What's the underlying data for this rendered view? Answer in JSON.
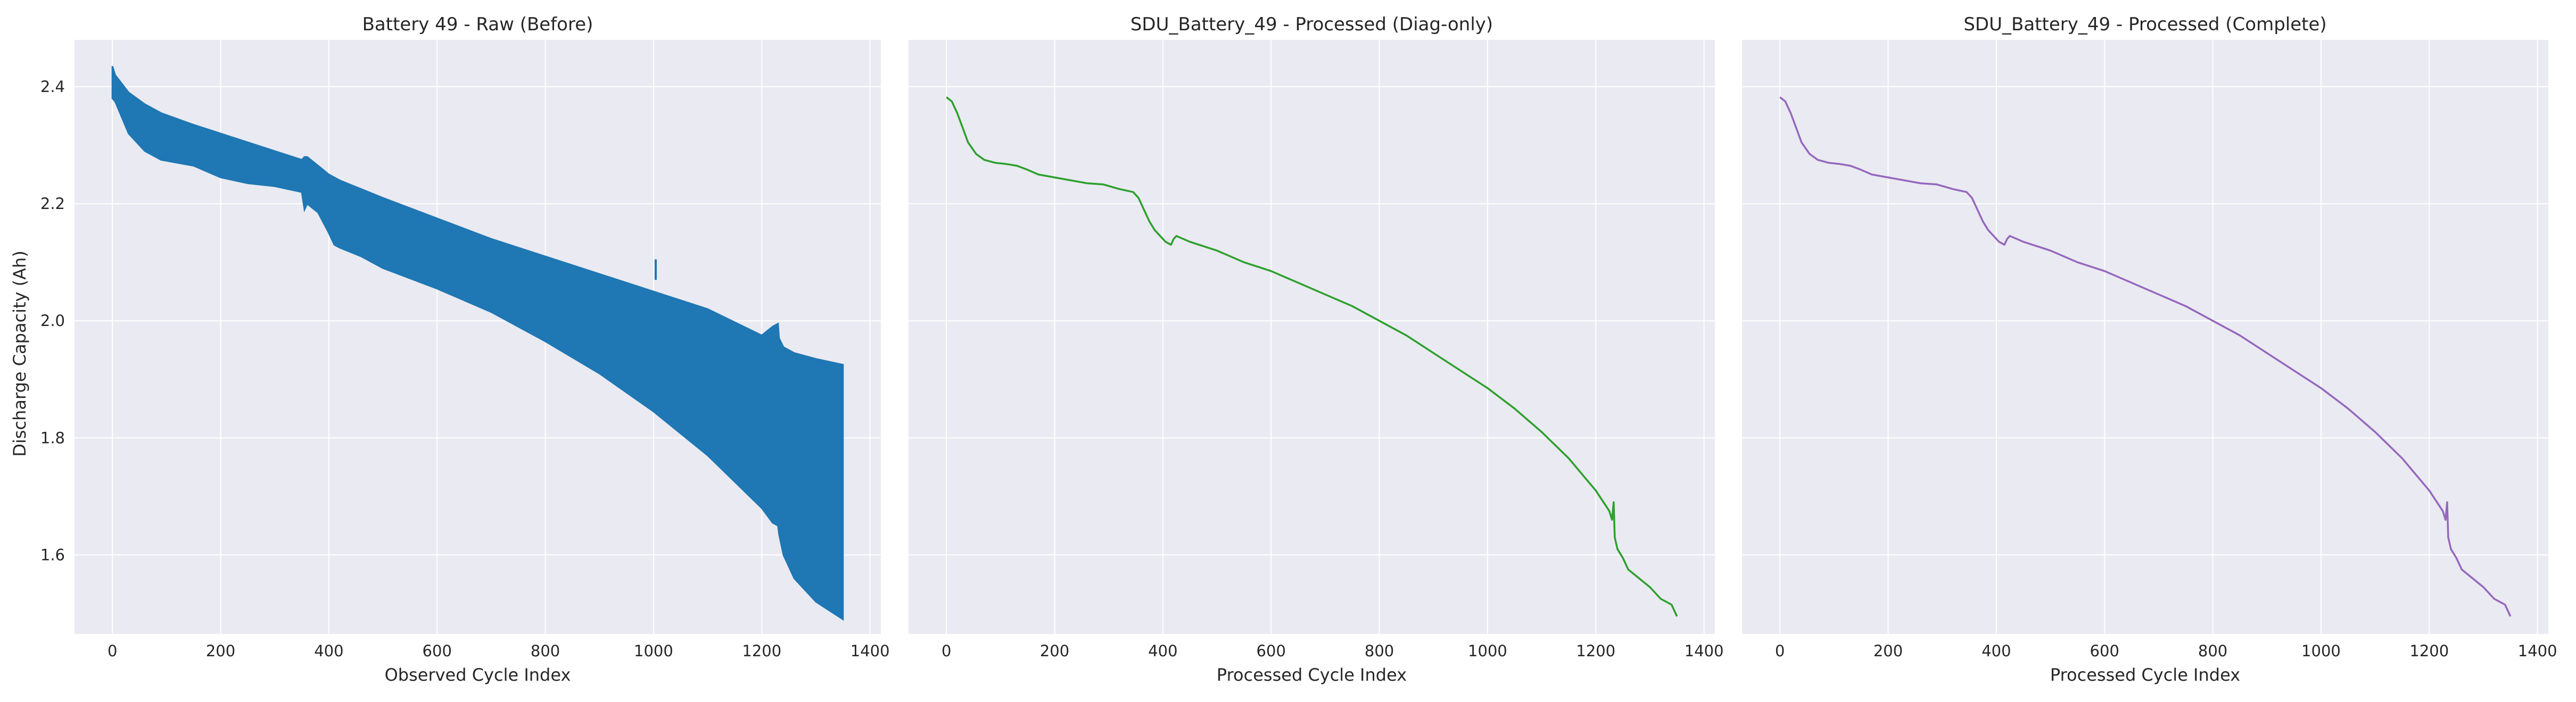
{
  "figure": {
    "ylabel": "Discharge Capacity (Ah)"
  },
  "chart_data": [
    {
      "type": "line",
      "title": "Battery 49 - Raw (Before)",
      "xlabel": "Observed Cycle Index",
      "ylabel": "Discharge Capacity (Ah)",
      "xlim": [
        -70,
        1420
      ],
      "ylim": [
        1.465,
        2.48
      ],
      "xticks": [
        0,
        200,
        400,
        600,
        800,
        1000,
        1200,
        1400
      ],
      "yticks": [
        1.6,
        1.8,
        2.0,
        2.2,
        2.4
      ],
      "grid": true,
      "color": "#1f77b4",
      "series": [
        {
          "style": "band",
          "x": [
            0,
            5,
            30,
            60,
            90,
            150,
            200,
            250,
            300,
            350,
            355,
            360,
            380,
            400,
            410,
            420,
            460,
            500,
            600,
            700,
            800,
            900,
            1000,
            1100,
            1200,
            1220,
            1230,
            1232,
            1240,
            1260,
            1300,
            1350
          ],
          "upper": [
            2.435,
            2.42,
            2.39,
            2.37,
            2.355,
            2.335,
            2.32,
            2.305,
            2.29,
            2.275,
            2.28,
            2.28,
            2.265,
            2.25,
            2.245,
            2.24,
            2.225,
            2.21,
            2.175,
            2.14,
            2.11,
            2.08,
            2.05,
            2.02,
            1.975,
            1.99,
            1.995,
            1.97,
            1.955,
            1.945,
            1.935,
            1.925
          ],
          "lower": [
            2.38,
            2.375,
            2.32,
            2.29,
            2.275,
            2.265,
            2.245,
            2.235,
            2.23,
            2.22,
            2.19,
            2.2,
            2.185,
            2.15,
            2.13,
            2.125,
            2.11,
            2.09,
            2.055,
            2.015,
            1.965,
            1.91,
            1.845,
            1.77,
            1.68,
            1.655,
            1.65,
            1.635,
            1.6,
            1.56,
            1.52,
            1.49
          ]
        },
        {
          "style": "spike",
          "x": [
            1004,
            1004
          ],
          "y": [
            2.07,
            2.105
          ]
        }
      ]
    },
    {
      "type": "line",
      "title": "SDU_Battery_49 - Processed (Diag-only)",
      "xlabel": "Processed Cycle Index",
      "xlim": [
        -70,
        1420
      ],
      "ylim": [
        1.465,
        2.48
      ],
      "xticks": [
        0,
        200,
        400,
        600,
        800,
        1000,
        1200,
        1400
      ],
      "grid": true,
      "color": "#2ca02c",
      "series": [
        {
          "style": "line",
          "x": [
            0,
            10,
            20,
            30,
            40,
            55,
            70,
            90,
            110,
            130,
            150,
            170,
            200,
            230,
            260,
            290,
            320,
            345,
            355,
            365,
            375,
            385,
            395,
            405,
            415,
            420,
            425,
            450,
            500,
            550,
            600,
            650,
            700,
            750,
            800,
            850,
            900,
            950,
            1000,
            1050,
            1100,
            1150,
            1200,
            1225,
            1230,
            1233,
            1235,
            1240,
            1250,
            1260,
            1280,
            1300,
            1320,
            1340,
            1350
          ],
          "y": [
            2.382,
            2.375,
            2.355,
            2.33,
            2.305,
            2.285,
            2.275,
            2.27,
            2.268,
            2.265,
            2.258,
            2.25,
            2.245,
            2.24,
            2.235,
            2.233,
            2.225,
            2.22,
            2.21,
            2.19,
            2.17,
            2.155,
            2.145,
            2.135,
            2.13,
            2.14,
            2.145,
            2.135,
            2.12,
            2.1,
            2.085,
            2.065,
            2.045,
            2.025,
            2.0,
            1.975,
            1.945,
            1.915,
            1.885,
            1.85,
            1.81,
            1.765,
            1.71,
            1.675,
            1.66,
            1.69,
            1.63,
            1.61,
            1.595,
            1.575,
            1.56,
            1.545,
            1.525,
            1.515,
            1.495
          ]
        }
      ]
    },
    {
      "type": "line",
      "title": "SDU_Battery_49 - Processed (Complete)",
      "xlabel": "Processed Cycle Index",
      "xlim": [
        -70,
        1420
      ],
      "ylim": [
        1.465,
        2.48
      ],
      "xticks": [
        0,
        200,
        400,
        600,
        800,
        1000,
        1200,
        1400
      ],
      "grid": true,
      "color": "#9467bd",
      "series": [
        {
          "style": "line",
          "x": [
            0,
            10,
            20,
            30,
            40,
            55,
            70,
            90,
            110,
            130,
            150,
            170,
            200,
            230,
            260,
            290,
            320,
            345,
            355,
            365,
            375,
            385,
            395,
            405,
            415,
            420,
            425,
            450,
            500,
            550,
            600,
            650,
            700,
            750,
            800,
            850,
            900,
            950,
            1000,
            1050,
            1100,
            1150,
            1200,
            1225,
            1230,
            1233,
            1235,
            1240,
            1250,
            1260,
            1280,
            1300,
            1320,
            1340,
            1350
          ],
          "y": [
            2.382,
            2.375,
            2.355,
            2.33,
            2.305,
            2.285,
            2.275,
            2.27,
            2.268,
            2.265,
            2.258,
            2.25,
            2.245,
            2.24,
            2.235,
            2.233,
            2.225,
            2.22,
            2.21,
            2.19,
            2.17,
            2.155,
            2.145,
            2.135,
            2.13,
            2.14,
            2.145,
            2.135,
            2.12,
            2.1,
            2.085,
            2.065,
            2.045,
            2.025,
            2.0,
            1.975,
            1.945,
            1.915,
            1.885,
            1.85,
            1.81,
            1.765,
            1.71,
            1.675,
            1.66,
            1.69,
            1.63,
            1.61,
            1.595,
            1.575,
            1.56,
            1.545,
            1.525,
            1.515,
            1.495
          ]
        }
      ]
    }
  ]
}
